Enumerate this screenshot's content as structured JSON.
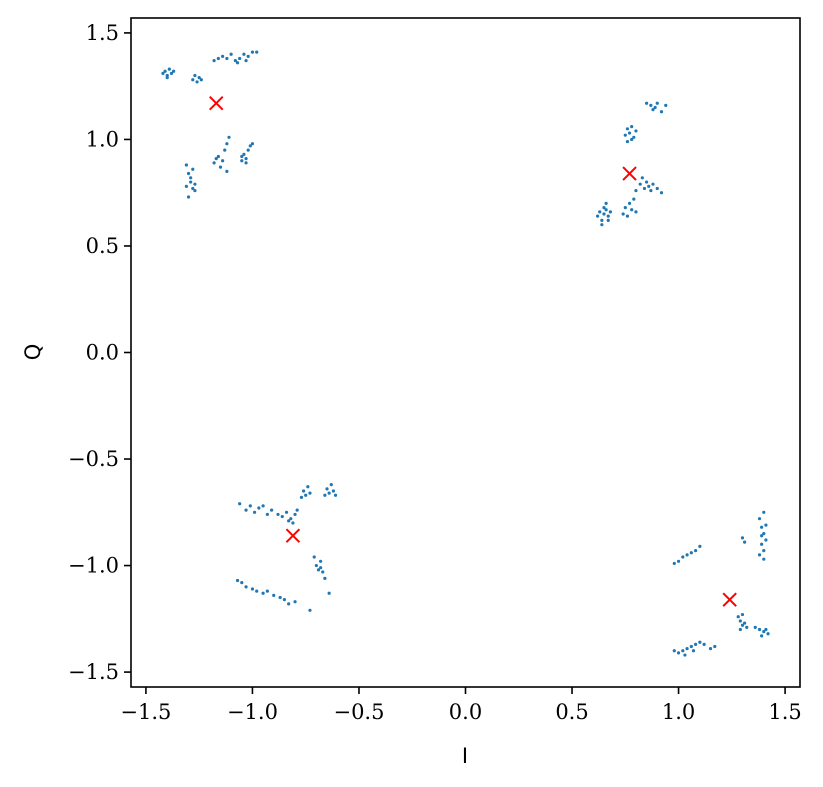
{
  "chart_data": {
    "type": "scatter",
    "title": "",
    "xlabel": "I",
    "ylabel": "Q",
    "xlim": [
      -1.57,
      1.57
    ],
    "ylim": [
      -1.57,
      1.57
    ],
    "xticks": [
      -1.5,
      -1.0,
      -0.5,
      0.0,
      0.5,
      1.0,
      1.5
    ],
    "yticks": [
      -1.5,
      -1.0,
      -0.5,
      0.0,
      0.5,
      1.0,
      1.5
    ],
    "xtick_labels": [
      "−1.5",
      "−1.0",
      "−0.5",
      "0.0",
      "0.5",
      "1.0",
      "1.5"
    ],
    "ytick_labels": [
      "−1.5",
      "−1.0",
      "−0.5",
      "0.0",
      "0.5",
      "1.0",
      "1.5"
    ],
    "grid": false,
    "colors": {
      "points": "#1f77b4",
      "centroids": "#ff0000"
    },
    "series": [
      {
        "marker": "dot",
        "color": "#1f77b4",
        "points": [
          [
            -1.42,
            1.31
          ],
          [
            -1.41,
            1.32
          ],
          [
            -1.4,
            1.3
          ],
          [
            -1.39,
            1.33
          ],
          [
            -1.38,
            1.31
          ],
          [
            -1.37,
            1.32
          ],
          [
            -1.4,
            1.29
          ],
          [
            -1.28,
            1.28
          ],
          [
            -1.27,
            1.3
          ],
          [
            -1.26,
            1.27
          ],
          [
            -1.25,
            1.29
          ],
          [
            -1.24,
            1.28
          ],
          [
            -1.18,
            1.37
          ],
          [
            -1.16,
            1.38
          ],
          [
            -1.14,
            1.39
          ],
          [
            -1.12,
            1.38
          ],
          [
            -1.1,
            1.4
          ],
          [
            -1.08,
            1.37
          ],
          [
            -1.06,
            1.38
          ],
          [
            -1.04,
            1.4
          ],
          [
            -1.02,
            1.39
          ],
          [
            -1.0,
            1.41
          ],
          [
            -0.98,
            1.41
          ],
          [
            -1.03,
            1.37
          ],
          [
            -1.07,
            1.36
          ],
          [
            -1.31,
            0.88
          ],
          [
            -1.3,
            0.84
          ],
          [
            -1.29,
            0.8
          ],
          [
            -1.28,
            0.77
          ],
          [
            -1.27,
            0.79
          ],
          [
            -1.3,
            0.73
          ],
          [
            -1.29,
            0.82
          ],
          [
            -1.28,
            0.86
          ],
          [
            -1.31,
            0.78
          ],
          [
            -1.27,
            0.76
          ],
          [
            -1.18,
            0.89
          ],
          [
            -1.16,
            0.92
          ],
          [
            -1.14,
            0.9
          ],
          [
            -1.13,
            0.95
          ],
          [
            -1.12,
            0.98
          ],
          [
            -1.11,
            1.01
          ],
          [
            -1.12,
            0.85
          ],
          [
            -1.15,
            0.87
          ],
          [
            -1.17,
            0.91
          ],
          [
            -1.05,
            0.9
          ],
          [
            -1.04,
            0.93
          ],
          [
            -1.03,
            0.91
          ],
          [
            -1.02,
            0.95
          ],
          [
            -1.01,
            0.97
          ],
          [
            -1.0,
            0.98
          ],
          [
            -1.03,
            0.89
          ],
          [
            -1.05,
            0.92
          ],
          [
            0.62,
            0.64
          ],
          [
            0.63,
            0.66
          ],
          [
            0.64,
            0.62
          ],
          [
            0.65,
            0.65
          ],
          [
            0.66,
            0.67
          ],
          [
            0.67,
            0.64
          ],
          [
            0.68,
            0.66
          ],
          [
            0.66,
            0.7
          ],
          [
            0.64,
            0.6
          ],
          [
            0.65,
            0.68
          ],
          [
            0.67,
            0.62
          ],
          [
            0.74,
            0.65
          ],
          [
            0.75,
            0.68
          ],
          [
            0.76,
            0.64
          ],
          [
            0.77,
            0.7
          ],
          [
            0.78,
            0.67
          ],
          [
            0.79,
            0.72
          ],
          [
            0.8,
            0.66
          ],
          [
            0.75,
            1.02
          ],
          [
            0.76,
            1.05
          ],
          [
            0.77,
            1.03
          ],
          [
            0.78,
            1.06
          ],
          [
            0.79,
            1.01
          ],
          [
            0.8,
            1.04
          ],
          [
            0.76,
            0.99
          ],
          [
            0.78,
            1.0
          ],
          [
            0.8,
            0.76
          ],
          [
            0.82,
            0.79
          ],
          [
            0.84,
            0.77
          ],
          [
            0.85,
            0.8
          ],
          [
            0.86,
            0.78
          ],
          [
            0.87,
            0.76
          ],
          [
            0.88,
            0.79
          ],
          [
            0.9,
            0.77
          ],
          [
            0.92,
            0.75
          ],
          [
            0.83,
            0.82
          ],
          [
            0.85,
            1.17
          ],
          [
            0.87,
            1.16
          ],
          [
            0.89,
            1.15
          ],
          [
            0.9,
            1.17
          ],
          [
            0.92,
            1.13
          ],
          [
            0.94,
            1.16
          ],
          [
            0.88,
            1.14
          ],
          [
            -1.06,
            -0.71
          ],
          [
            -1.03,
            -0.74
          ],
          [
            -1.01,
            -0.72
          ],
          [
            -0.99,
            -0.75
          ],
          [
            -0.97,
            -0.73
          ],
          [
            -0.95,
            -0.72
          ],
          [
            -0.93,
            -0.76
          ],
          [
            -0.91,
            -0.74
          ],
          [
            -0.88,
            -0.76
          ],
          [
            -0.86,
            -0.77
          ],
          [
            -0.84,
            -0.75
          ],
          [
            -0.82,
            -0.78
          ],
          [
            -0.8,
            -0.76
          ],
          [
            -0.79,
            -0.74
          ],
          [
            -0.81,
            -0.8
          ],
          [
            -0.83,
            -0.79
          ],
          [
            -0.77,
            -0.68
          ],
          [
            -0.76,
            -0.65
          ],
          [
            -0.75,
            -0.67
          ],
          [
            -0.74,
            -0.63
          ],
          [
            -0.73,
            -0.66
          ],
          [
            -0.66,
            -0.67
          ],
          [
            -0.65,
            -0.64
          ],
          [
            -0.64,
            -0.66
          ],
          [
            -0.63,
            -0.62
          ],
          [
            -0.62,
            -0.65
          ],
          [
            -0.61,
            -0.67
          ],
          [
            -1.07,
            -1.07
          ],
          [
            -1.05,
            -1.08
          ],
          [
            -1.03,
            -1.1
          ],
          [
            -1.0,
            -1.11
          ],
          [
            -0.98,
            -1.12
          ],
          [
            -0.95,
            -1.13
          ],
          [
            -0.93,
            -1.12
          ],
          [
            -0.9,
            -1.14
          ],
          [
            -0.87,
            -1.15
          ],
          [
            -0.85,
            -1.16
          ],
          [
            -0.83,
            -1.18
          ],
          [
            -0.8,
            -1.17
          ],
          [
            -0.73,
            -1.21
          ],
          [
            -0.71,
            -0.96
          ],
          [
            -0.7,
            -1.0
          ],
          [
            -0.69,
            -1.02
          ],
          [
            -0.68,
            -1.01
          ],
          [
            -0.67,
            -1.03
          ],
          [
            -0.66,
            -1.06
          ],
          [
            -0.68,
            -0.98
          ],
          [
            -0.64,
            -1.13
          ],
          [
            0.98,
            -0.99
          ],
          [
            1.0,
            -0.98
          ],
          [
            1.02,
            -0.96
          ],
          [
            1.04,
            -0.95
          ],
          [
            1.06,
            -0.94
          ],
          [
            1.08,
            -0.93
          ],
          [
            1.1,
            -0.91
          ],
          [
            1.3,
            -0.87
          ],
          [
            1.31,
            -0.89
          ],
          [
            1.38,
            -0.78
          ],
          [
            1.39,
            -0.82
          ],
          [
            1.4,
            -0.85
          ],
          [
            1.41,
            -0.88
          ],
          [
            1.39,
            -0.9
          ],
          [
            1.4,
            -0.93
          ],
          [
            1.38,
            -0.95
          ],
          [
            1.4,
            -0.75
          ],
          [
            1.41,
            -0.81
          ],
          [
            1.39,
            -0.86
          ],
          [
            1.4,
            -0.97
          ],
          [
            0.98,
            -1.4
          ],
          [
            1.0,
            -1.41
          ],
          [
            1.02,
            -1.4
          ],
          [
            1.04,
            -1.39
          ],
          [
            1.06,
            -1.38
          ],
          [
            1.08,
            -1.37
          ],
          [
            1.1,
            -1.36
          ],
          [
            1.12,
            -1.37
          ],
          [
            1.15,
            -1.39
          ],
          [
            1.17,
            -1.38
          ],
          [
            1.03,
            -1.42
          ],
          [
            1.07,
            -1.4
          ],
          [
            1.28,
            -1.24
          ],
          [
            1.29,
            -1.26
          ],
          [
            1.3,
            -1.28
          ],
          [
            1.31,
            -1.27
          ],
          [
            1.32,
            -1.29
          ],
          [
            1.3,
            -1.23
          ],
          [
            1.29,
            -1.3
          ],
          [
            1.36,
            -1.29
          ],
          [
            1.38,
            -1.3
          ],
          [
            1.4,
            -1.31
          ],
          [
            1.42,
            -1.32
          ],
          [
            1.39,
            -1.33
          ],
          [
            1.41,
            -1.3
          ]
        ]
      },
      {
        "marker": "x",
        "color": "#ff0000",
        "points": [
          [
            -1.17,
            1.17
          ],
          [
            0.77,
            0.84
          ],
          [
            -0.81,
            -0.86
          ],
          [
            1.24,
            -1.16
          ]
        ]
      }
    ]
  }
}
